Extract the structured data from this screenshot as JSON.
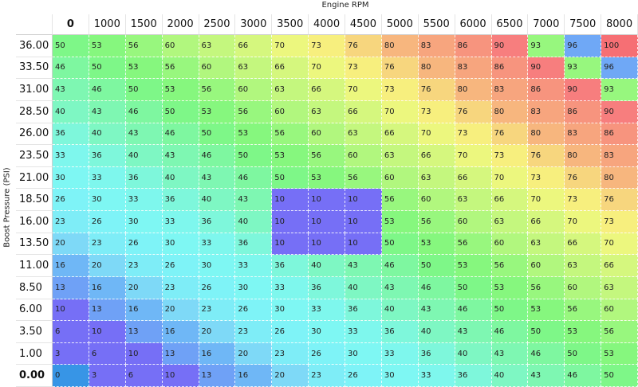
{
  "x_axis_label": "Engine RPM",
  "y_axis_label": "Boost Pressure (PSI)",
  "table": {
    "columns": [
      "0",
      "1000",
      "1500",
      "2000",
      "2500",
      "3000",
      "3500",
      "4000",
      "4500",
      "5000",
      "5500",
      "6000",
      "6500",
      "7000",
      "7500",
      "8000"
    ],
    "rows": [
      {
        "label": "36.00",
        "values": [
          50,
          53,
          56,
          60,
          63,
          66,
          70,
          73,
          76,
          80,
          83,
          86,
          90,
          93,
          96,
          100
        ]
      },
      {
        "label": "33.50",
        "values": [
          46,
          50,
          53,
          56,
          60,
          63,
          66,
          70,
          73,
          76,
          80,
          83,
          86,
          90,
          93,
          96
        ]
      },
      {
        "label": "31.00",
        "values": [
          43,
          46,
          50,
          53,
          56,
          60,
          63,
          66,
          70,
          73,
          76,
          80,
          83,
          86,
          90,
          93
        ]
      },
      {
        "label": "28.50",
        "values": [
          40,
          43,
          46,
          50,
          53,
          56,
          60,
          63,
          66,
          70,
          73,
          76,
          80,
          83,
          86,
          90
        ]
      },
      {
        "label": "26.00",
        "values": [
          36,
          40,
          43,
          46,
          50,
          53,
          56,
          60,
          63,
          66,
          70,
          73,
          76,
          80,
          83,
          86
        ]
      },
      {
        "label": "23.50",
        "values": [
          33,
          36,
          40,
          43,
          46,
          50,
          53,
          56,
          60,
          63,
          66,
          70,
          73,
          76,
          80,
          83
        ]
      },
      {
        "label": "21.00",
        "values": [
          30,
          33,
          36,
          40,
          43,
          46,
          50,
          53,
          56,
          60,
          63,
          66,
          70,
          73,
          76,
          80
        ]
      },
      {
        "label": "18.50",
        "values": [
          26,
          30,
          33,
          36,
          40,
          43,
          10,
          10,
          10,
          56,
          60,
          63,
          66,
          70,
          73,
          76
        ]
      },
      {
        "label": "16.00",
        "values": [
          23,
          26,
          30,
          33,
          36,
          40,
          10,
          10,
          10,
          53,
          56,
          60,
          63,
          66,
          70,
          73
        ]
      },
      {
        "label": "13.50",
        "values": [
          20,
          23,
          26,
          30,
          33,
          36,
          10,
          10,
          10,
          50,
          53,
          56,
          60,
          63,
          66,
          70
        ]
      },
      {
        "label": "11.00",
        "values": [
          16,
          20,
          23,
          26,
          30,
          33,
          36,
          40,
          43,
          46,
          50,
          53,
          56,
          60,
          63,
          66
        ]
      },
      {
        "label": "8.50",
        "values": [
          13,
          16,
          20,
          23,
          26,
          30,
          33,
          36,
          40,
          43,
          46,
          50,
          53,
          56,
          60,
          63
        ]
      },
      {
        "label": "6.00",
        "values": [
          10,
          13,
          16,
          20,
          23,
          26,
          30,
          33,
          36,
          40,
          43,
          46,
          50,
          53,
          56,
          60
        ]
      },
      {
        "label": "3.50",
        "values": [
          6,
          10,
          13,
          16,
          20,
          23,
          26,
          30,
          33,
          36,
          40,
          43,
          46,
          50,
          53,
          56
        ]
      },
      {
        "label": "1.00",
        "values": [
          3,
          6,
          10,
          13,
          16,
          20,
          23,
          26,
          30,
          33,
          36,
          40,
          43,
          46,
          50,
          53
        ]
      },
      {
        "label": "0.00",
        "values": [
          0,
          3,
          6,
          10,
          13,
          16,
          20,
          23,
          26,
          30,
          33,
          36,
          40,
          43,
          46,
          50
        ]
      }
    ]
  }
}
